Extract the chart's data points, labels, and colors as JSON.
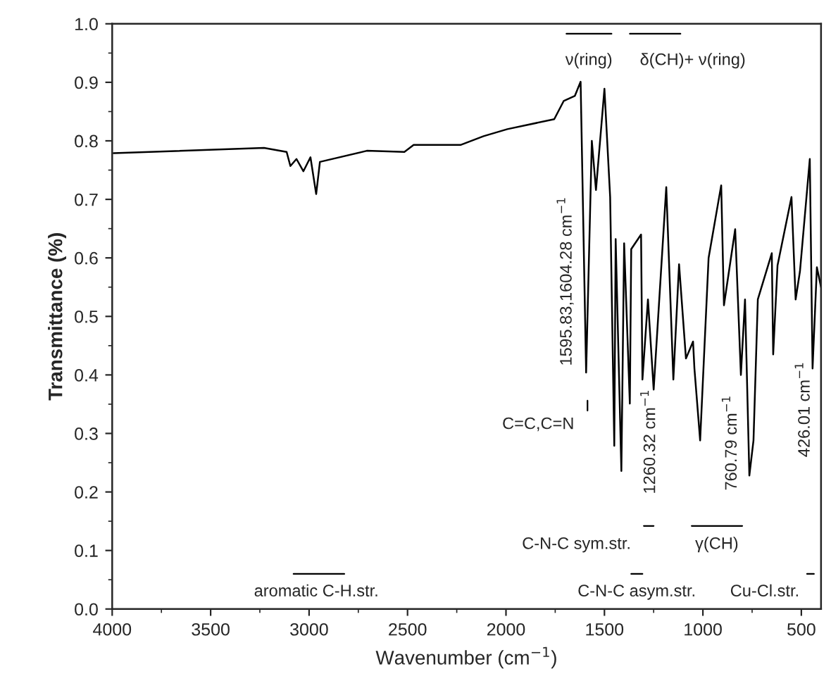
{
  "chart_data": {
    "type": "line",
    "xlabel": "Wavenumber (cm$^{−1}$)",
    "ylabel": "Transmittance (%)",
    "xlim": [
      4000,
      400
    ],
    "ylim": [
      0.0,
      1.0
    ],
    "xticks": [
      4000,
      3500,
      3000,
      2500,
      2000,
      1500,
      1000,
      500
    ],
    "yticks": [
      {
        "value": 0,
        "label": "0.0"
      },
      0.1,
      0.2,
      0.3,
      0.4,
      0.5,
      0.6,
      0.7,
      0.8,
      0.9,
      {
        "value": 1,
        "label": "1.0"
      }
    ],
    "grid": false,
    "legend": false,
    "series": [
      {
        "color": "#000000",
        "x": [
          3993,
          3229,
          3114,
          3095,
          3064,
          3029,
          2993,
          2964,
          2945,
          2707,
          2516,
          2469,
          2231,
          2114,
          1993,
          1755,
          1707,
          1650,
          1621,
          1593,
          1564,
          1543,
          1500,
          1471,
          1450,
          1443,
          1414,
          1400,
          1371,
          1364,
          1314,
          1307,
          1279,
          1250,
          1186,
          1150,
          1121,
          1086,
          1050,
          1043,
          1014,
          971,
          907,
          893,
          836,
          807,
          786,
          764,
          743,
          721,
          650,
          643,
          621,
          550,
          529,
          507,
          457,
          443,
          421,
          400
        ],
        "values": [
          0.779,
          0.788,
          0.781,
          0.757,
          0.769,
          0.748,
          0.772,
          0.709,
          0.764,
          0.783,
          0.781,
          0.793,
          0.793,
          0.808,
          0.82,
          0.837,
          0.868,
          0.877,
          0.901,
          0.404,
          0.8,
          0.716,
          0.889,
          0.704,
          0.279,
          0.632,
          0.236,
          0.625,
          0.351,
          0.615,
          0.64,
          0.392,
          0.529,
          0.375,
          0.721,
          0.392,
          0.589,
          0.428,
          0.457,
          0.411,
          0.288,
          0.6,
          0.724,
          0.519,
          0.649,
          0.4,
          0.529,
          0.228,
          0.288,
          0.529,
          0.608,
          0.435,
          0.587,
          0.704,
          0.529,
          0.577,
          0.769,
          0.411,
          0.584,
          0.55
        ]
      },
      {
        "color": "#000000",
        "x": [
          1693,
          1464
        ],
        "values": [
          0.983,
          0.983
        ]
      },
      {
        "color": "#000000",
        "x": [
          1371,
          1114
        ],
        "values": [
          0.983,
          0.983
        ]
      },
      {
        "color": "#000000",
        "x": [
          3079,
          2821
        ],
        "values": [
          0.06,
          0.06
        ]
      },
      {
        "color": "#000000",
        "x": [
          1364,
          1307
        ],
        "values": [
          0.06,
          0.06
        ]
      },
      {
        "color": "#000000",
        "x": [
          471,
          436
        ],
        "values": [
          0.06,
          0.06
        ]
      },
      {
        "color": "#000000",
        "x": [
          1300,
          1250
        ],
        "values": [
          0.142,
          0.142
        ]
      },
      {
        "color": "#000000",
        "x": [
          1057,
          800
        ],
        "values": [
          0.142,
          0.142
        ]
      },
      {
        "color": "#000000",
        "x": [
          1586,
          1586
        ],
        "values": [
          0.356,
          0.339
        ]
      }
    ],
    "annotations": [
      "ν(ring)",
      "δ(CH)+ ν(ring)",
      "1595.83,1604.28 cm$^{−1}$",
      "C=C,C=N",
      "1260.32 cm$^{−1}$",
      "760.79 cm$^{−1}$",
      "426.01 cm$^{−1}$",
      "C-N-C sym.str.",
      "γ(CH)",
      "aromatic C-H.str.",
      "C-N-C asym.str.",
      "Cu-Cl.str."
    ]
  }
}
